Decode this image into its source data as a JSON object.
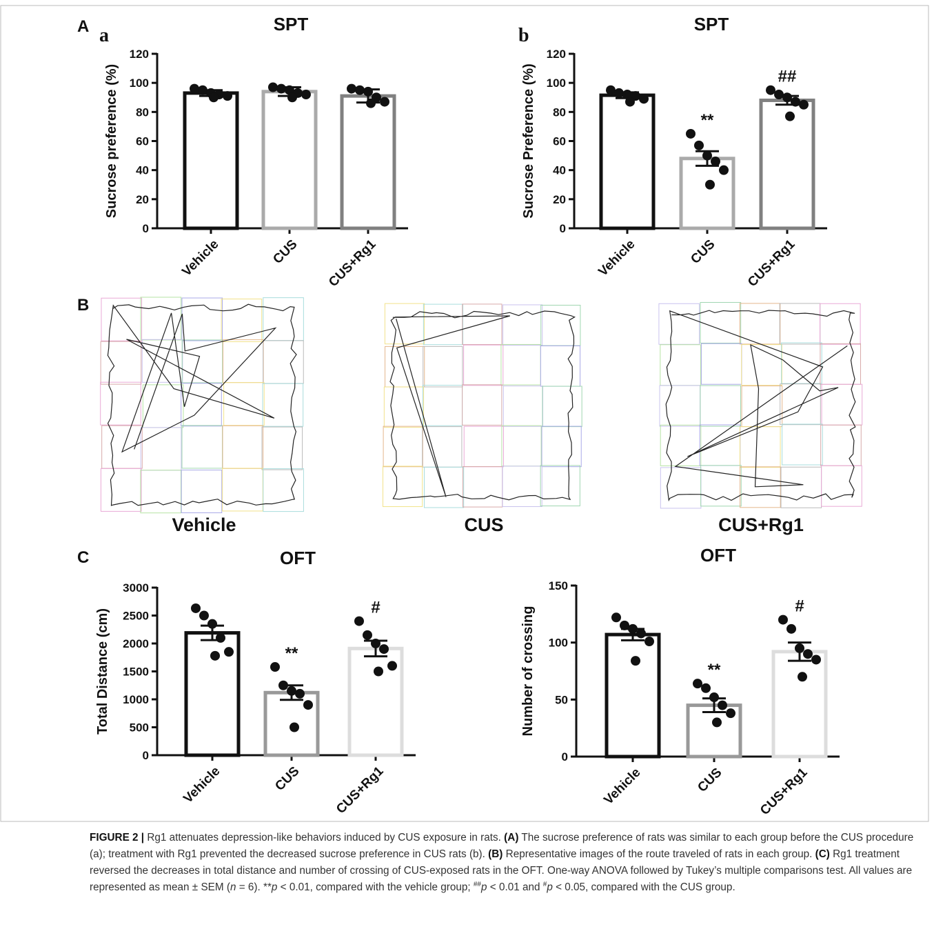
{
  "panel_labels": {
    "A": "A",
    "a": "a",
    "b": "b",
    "B": "B",
    "C": "C"
  },
  "chart_data": [
    {
      "type": "bar",
      "title": "SPT",
      "y_label": "Sucrose preference (%)",
      "categories": [
        "Vehicle",
        "CUS",
        "CUS+Rg1"
      ],
      "values": [
        93,
        94,
        91
      ],
      "errors": [
        2,
        3,
        4.5
      ],
      "points": [
        [
          96,
          95,
          93,
          92,
          91,
          90
        ],
        [
          97,
          96,
          95,
          93,
          92,
          90
        ],
        [
          96,
          95,
          94,
          90,
          87,
          86
        ]
      ],
      "annotations": [
        null,
        null,
        null
      ],
      "colors": [
        "#111111",
        "#aaaaaa",
        "#808080"
      ],
      "ylim": [
        0,
        120
      ],
      "yticks": [
        0,
        20,
        40,
        60,
        80,
        100,
        120
      ]
    },
    {
      "type": "bar",
      "title": "SPT",
      "y_label": "Sucrose Preference (%)",
      "categories": [
        "Vehicle",
        "CUS",
        "CUS+Rg1"
      ],
      "values": [
        91.5,
        48,
        88
      ],
      "errors": [
        2,
        5,
        3
      ],
      "points": [
        [
          95,
          93,
          92,
          91,
          89,
          87
        ],
        [
          65,
          57,
          50,
          46,
          40,
          30
        ],
        [
          95,
          92,
          90,
          87,
          85,
          77
        ]
      ],
      "annotations": [
        null,
        "**",
        "##"
      ],
      "colors": [
        "#111111",
        "#aaaaaa",
        "#808080"
      ],
      "ylim": [
        0,
        120
      ],
      "yticks": [
        0,
        20,
        40,
        60,
        80,
        100,
        120
      ]
    },
    {
      "type": "bar",
      "title": "OFT",
      "y_label": "Total Distance (cm)",
      "categories": [
        "Vehicle",
        "CUS",
        "CUS+Rg1"
      ],
      "values": [
        2190,
        1120,
        1910
      ],
      "errors": [
        130,
        130,
        140
      ],
      "points": [
        [
          2630,
          2500,
          2350,
          2100,
          1850,
          1780
        ],
        [
          1580,
          1250,
          1150,
          1100,
          900,
          500
        ],
        [
          2400,
          2150,
          2000,
          1900,
          1600,
          1500
        ]
      ],
      "annotations": [
        null,
        "**",
        "#"
      ],
      "colors": [
        "#111111",
        "#999999",
        "#dddddd"
      ],
      "ylim": [
        0,
        3000
      ],
      "yticks": [
        0,
        500,
        1000,
        1500,
        2000,
        2500,
        3000
      ]
    },
    {
      "type": "bar",
      "title": "OFT",
      "y_label": "Number of crossing",
      "categories": [
        "Vehicle",
        "CUS",
        "CUS+Rg1"
      ],
      "values": [
        107,
        45,
        92
      ],
      "errors": [
        5,
        6,
        8
      ],
      "points": [
        [
          122,
          115,
          112,
          108,
          101,
          84
        ],
        [
          64,
          60,
          52,
          45,
          38,
          30
        ],
        [
          120,
          112,
          95,
          90,
          85,
          70
        ]
      ],
      "annotations": [
        null,
        "**",
        "#"
      ],
      "colors": [
        "#111111",
        "#999999",
        "#dddddd"
      ],
      "ylim": [
        0,
        150
      ],
      "yticks": [
        0,
        50,
        100,
        150
      ]
    }
  ],
  "track_images": {
    "labels": [
      "Vehicle",
      "CUS",
      "CUS+Rg1"
    ]
  },
  "caption": [
    {
      "text": "FIGURE 2 | ",
      "style": "bold"
    },
    {
      "text": "Rg1 attenuates depression-like behaviors induced by CUS exposure in rats. "
    },
    {
      "text": "(A)",
      "style": "bold"
    },
    {
      "text": " The sucrose preference of rats was similar to each group before the CUS procedure (a); treatment with Rg1 prevented the decreased sucrose preference in CUS rats (b). "
    },
    {
      "text": "(B)",
      "style": "bold"
    },
    {
      "text": " Representative images of the route traveled of rats in each group. "
    },
    {
      "text": "(C)",
      "style": "bold"
    },
    {
      "text": " Rg1 treatment reversed the decreases in total distance and number of crossing of CUS-exposed rats in the OFT. One-way ANOVA followed by Tukey’s multiple comparisons test. All values are represented as mean ± SEM ("
    },
    {
      "text": "n",
      "style": "italic"
    },
    {
      "text": " = 6). **"
    },
    {
      "text": "p",
      "style": "italic"
    },
    {
      "text": " < 0.01, compared with the vehicle group; "
    },
    {
      "text": "##",
      "style": "sup"
    },
    {
      "text": "p",
      "style": "italic"
    },
    {
      "text": " < 0.01 and "
    },
    {
      "text": "#",
      "style": "sup"
    },
    {
      "text": "p",
      "style": "italic"
    },
    {
      "text": " < 0.05, compared with the CUS group."
    }
  ]
}
